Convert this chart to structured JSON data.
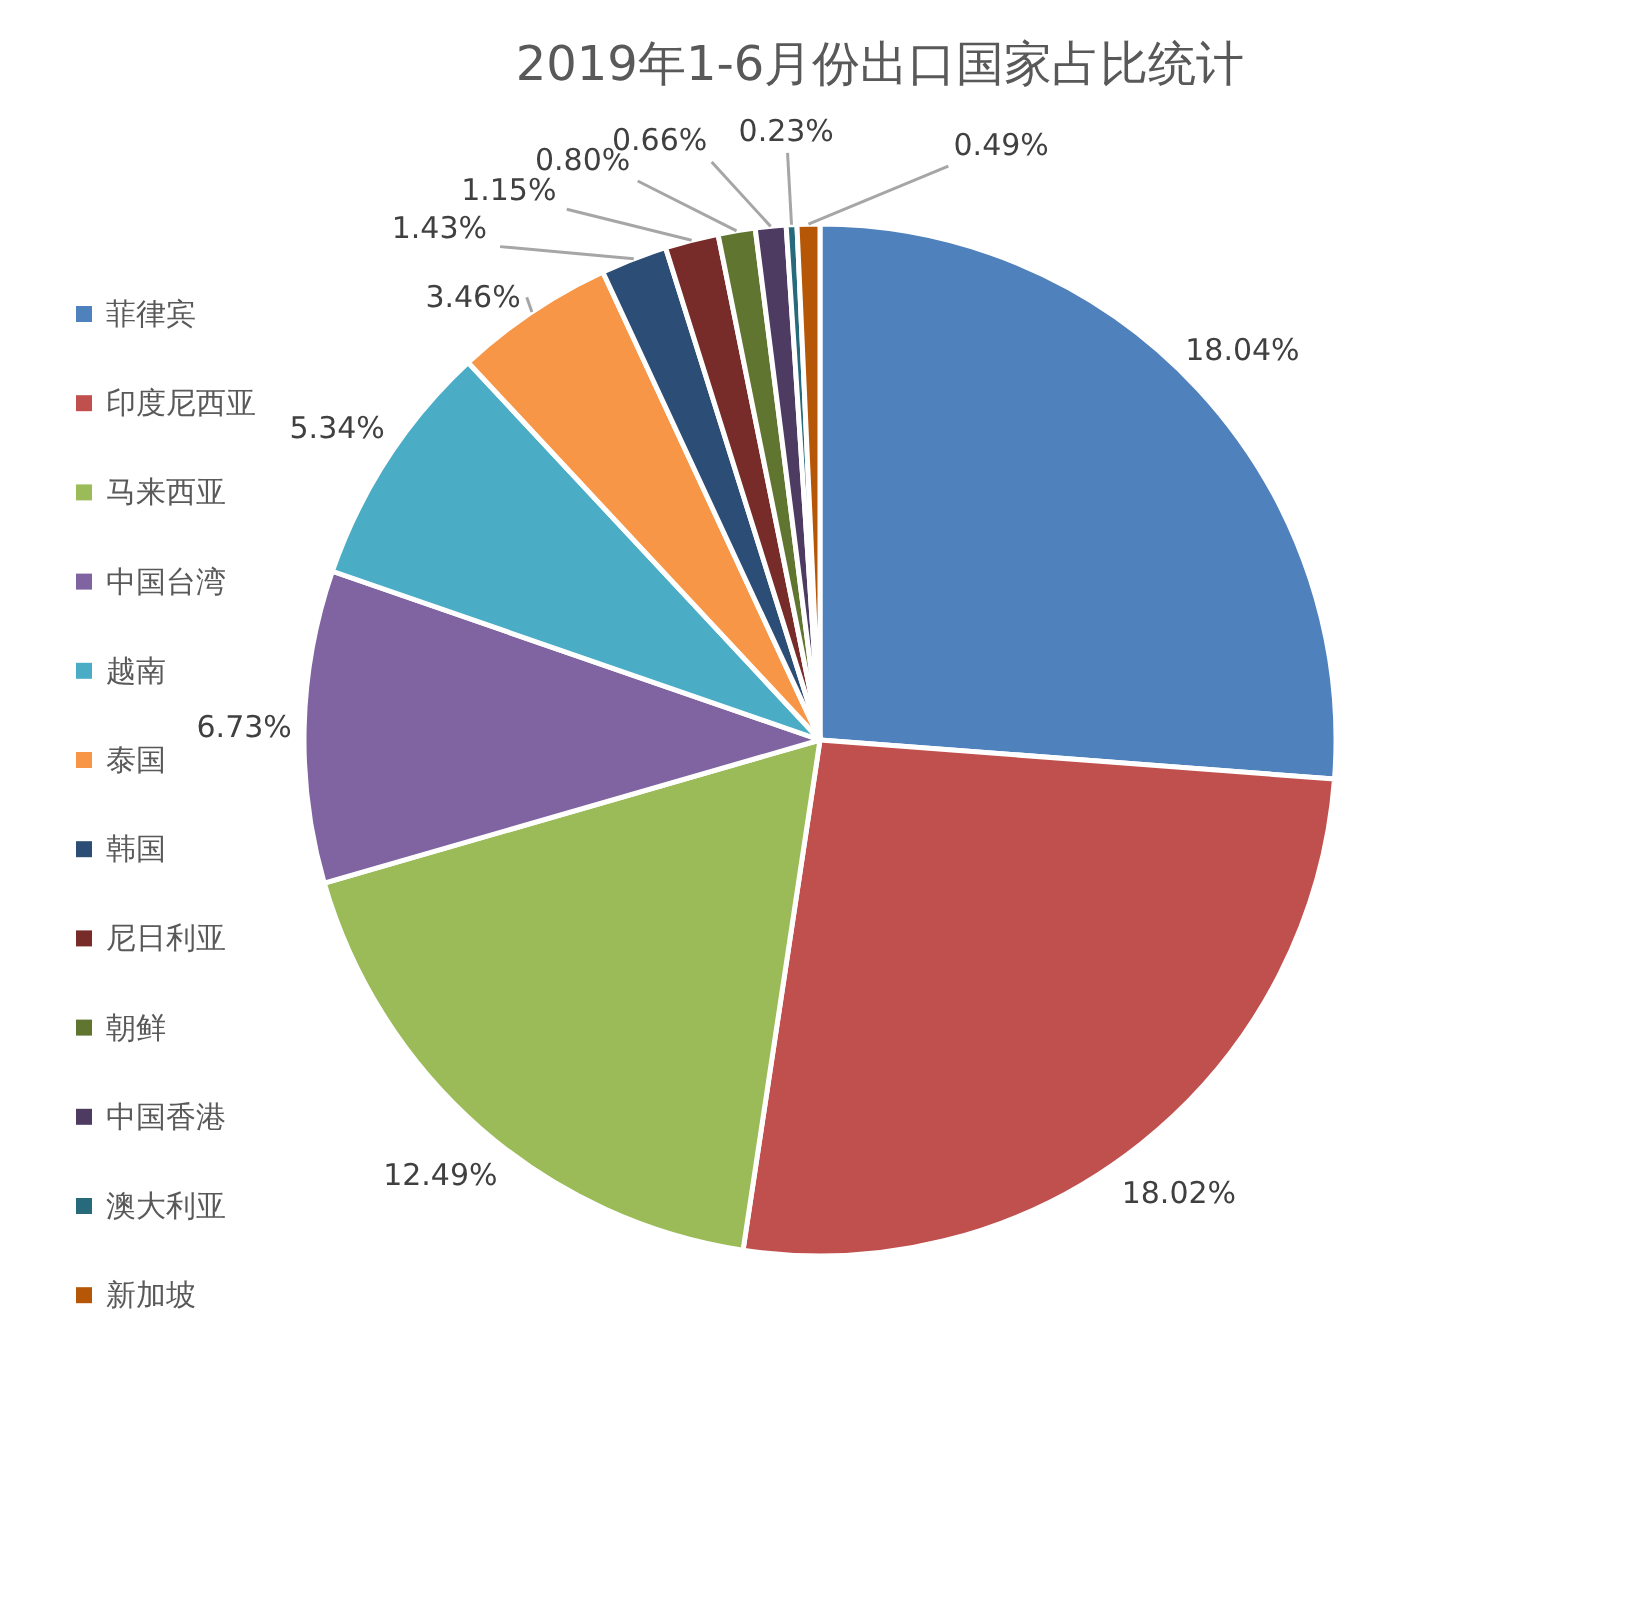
{
  "chart_data": {
    "type": "pie",
    "title": "2019年1-6月份出口国家占比统计",
    "categories": [
      "菲律宾",
      "印度尼西亚",
      "马来西亚",
      "中国台湾",
      "越南",
      "泰国",
      "韩国",
      "尼日利亚",
      "朝鲜",
      "中国香港",
      "澳大利亚",
      "新加坡"
    ],
    "values": [
      18.04,
      18.02,
      12.49,
      6.73,
      5.34,
      3.46,
      1.43,
      1.15,
      0.8,
      0.66,
      0.23,
      0.49
    ],
    "colors": [
      "#4f81bd",
      "#c0504d",
      "#9bbb59",
      "#8064a2",
      "#4bacc6",
      "#f79646",
      "#2c4d75",
      "#772c2a",
      "#5f7530",
      "#4d3b62",
      "#276a7c",
      "#b65708"
    ],
    "value_labels": [
      "18.04%",
      "18.02%",
      "12.49%",
      "6.73%",
      "5.34%",
      "3.46%",
      "1.43%",
      "1.15%",
      "0.80%",
      "0.66%",
      "0.23%",
      "0.49%"
    ],
    "legend": "left"
  }
}
